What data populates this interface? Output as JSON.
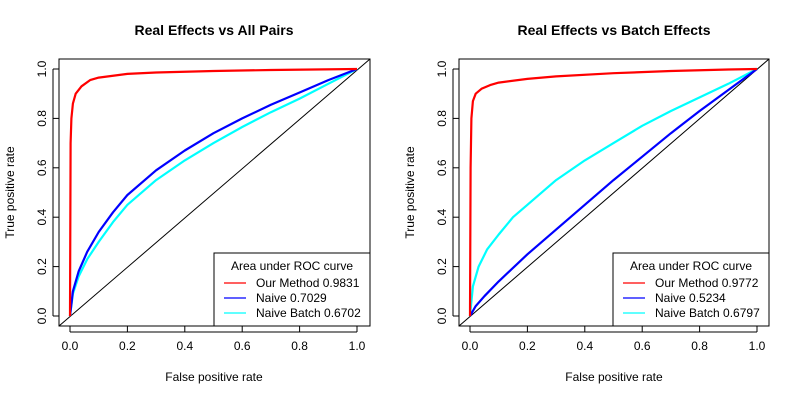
{
  "chart_data": [
    {
      "type": "line",
      "title": "Real Effects vs All Pairs",
      "xlabel": "False positive rate",
      "ylabel": "True positive rate",
      "xlim": [
        0,
        1
      ],
      "ylim": [
        0,
        1
      ],
      "x_ticks": [
        "0.0",
        "0.2",
        "0.4",
        "0.6",
        "0.8",
        "1.0"
      ],
      "y_ticks": [
        "0.0",
        "0.2",
        "0.4",
        "0.6",
        "0.8",
        "1.0"
      ],
      "grid": false,
      "reference_line": {
        "from": [
          0,
          0
        ],
        "to": [
          1,
          1
        ],
        "color": "#000000"
      },
      "legend": {
        "title": "Area under ROC curve",
        "position": "bottom-right",
        "entries": [
          "Our Method 0.9831",
          "Naive 0.7029",
          "Naive Batch 0.6702"
        ]
      },
      "series": [
        {
          "name": "Our Method 0.9831",
          "color": "#ff0000",
          "points": [
            [
              0,
              0
            ],
            [
              0.002,
              0.7
            ],
            [
              0.005,
              0.8
            ],
            [
              0.01,
              0.86
            ],
            [
              0.02,
              0.9
            ],
            [
              0.04,
              0.93
            ],
            [
              0.07,
              0.955
            ],
            [
              0.1,
              0.965
            ],
            [
              0.2,
              0.98
            ],
            [
              0.3,
              0.986
            ],
            [
              0.5,
              0.992
            ],
            [
              0.7,
              0.996
            ],
            [
              1,
              1
            ]
          ]
        },
        {
          "name": "Naive 0.7029",
          "color": "#0000ff",
          "points": [
            [
              0,
              0
            ],
            [
              0.01,
              0.1
            ],
            [
              0.03,
              0.18
            ],
            [
              0.06,
              0.26
            ],
            [
              0.1,
              0.34
            ],
            [
              0.15,
              0.42
            ],
            [
              0.2,
              0.49
            ],
            [
              0.3,
              0.59
            ],
            [
              0.4,
              0.67
            ],
            [
              0.5,
              0.74
            ],
            [
              0.6,
              0.8
            ],
            [
              0.7,
              0.855
            ],
            [
              0.8,
              0.905
            ],
            [
              0.9,
              0.955
            ],
            [
              1,
              1
            ]
          ]
        },
        {
          "name": "Naive Batch 0.6702",
          "color": "#00ffff",
          "points": [
            [
              0,
              0
            ],
            [
              0.01,
              0.09
            ],
            [
              0.03,
              0.16
            ],
            [
              0.06,
              0.23
            ],
            [
              0.1,
              0.3
            ],
            [
              0.15,
              0.38
            ],
            [
              0.2,
              0.45
            ],
            [
              0.3,
              0.55
            ],
            [
              0.4,
              0.63
            ],
            [
              0.5,
              0.7
            ],
            [
              0.6,
              0.765
            ],
            [
              0.7,
              0.825
            ],
            [
              0.8,
              0.88
            ],
            [
              0.9,
              0.94
            ],
            [
              1,
              1
            ]
          ]
        }
      ]
    },
    {
      "type": "line",
      "title": "Real Effects vs Batch Effects",
      "xlabel": "False positive rate",
      "ylabel": "True positive rate",
      "xlim": [
        0,
        1
      ],
      "ylim": [
        0,
        1
      ],
      "x_ticks": [
        "0.0",
        "0.2",
        "0.4",
        "0.6",
        "0.8",
        "1.0"
      ],
      "y_ticks": [
        "0.0",
        "0.2",
        "0.4",
        "0.6",
        "0.8",
        "1.0"
      ],
      "grid": false,
      "reference_line": {
        "from": [
          0,
          0
        ],
        "to": [
          1,
          1
        ],
        "color": "#000000"
      },
      "legend": {
        "title": "Area under ROC curve",
        "position": "bottom-right",
        "entries": [
          "Our Method 0.9772",
          "Naive 0.5234",
          "Naive Batch 0.6797"
        ]
      },
      "series": [
        {
          "name": "Our Method 0.9772",
          "color": "#ff0000",
          "points": [
            [
              0,
              0
            ],
            [
              0.002,
              0.6
            ],
            [
              0.005,
              0.8
            ],
            [
              0.01,
              0.87
            ],
            [
              0.02,
              0.9
            ],
            [
              0.04,
              0.92
            ],
            [
              0.07,
              0.935
            ],
            [
              0.1,
              0.945
            ],
            [
              0.2,
              0.96
            ],
            [
              0.3,
              0.97
            ],
            [
              0.5,
              0.983
            ],
            [
              0.7,
              0.992
            ],
            [
              0.9,
              0.998
            ],
            [
              1,
              1
            ]
          ]
        },
        {
          "name": "Naive 0.5234",
          "color": "#0000ff",
          "points": [
            [
              0,
              0
            ],
            [
              0.02,
              0.04
            ],
            [
              0.05,
              0.08
            ],
            [
              0.1,
              0.14
            ],
            [
              0.2,
              0.25
            ],
            [
              0.3,
              0.35
            ],
            [
              0.4,
              0.45
            ],
            [
              0.5,
              0.55
            ],
            [
              0.6,
              0.645
            ],
            [
              0.7,
              0.74
            ],
            [
              0.8,
              0.83
            ],
            [
              0.9,
              0.915
            ],
            [
              1,
              1
            ]
          ]
        },
        {
          "name": "Naive Batch 0.6797",
          "color": "#00ffff",
          "points": [
            [
              0,
              0
            ],
            [
              0.01,
              0.12
            ],
            [
              0.03,
              0.2
            ],
            [
              0.06,
              0.27
            ],
            [
              0.1,
              0.33
            ],
            [
              0.15,
              0.4
            ],
            [
              0.2,
              0.45
            ],
            [
              0.3,
              0.55
            ],
            [
              0.4,
              0.63
            ],
            [
              0.5,
              0.7
            ],
            [
              0.6,
              0.77
            ],
            [
              0.7,
              0.83
            ],
            [
              0.8,
              0.885
            ],
            [
              0.9,
              0.94
            ],
            [
              1,
              1
            ]
          ]
        }
      ]
    }
  ]
}
